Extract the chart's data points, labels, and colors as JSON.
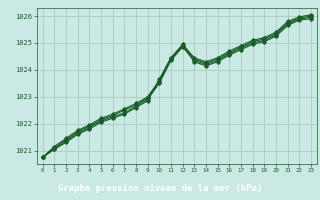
{
  "title": "Graphe pression niveau de la mer (hPa)",
  "bg_color": "#cbe9e4",
  "grid_color": "#aaccbb",
  "line_color": "#1a5c2a",
  "xlim": [
    -0.5,
    23.5
  ],
  "ylim": [
    1020.5,
    1026.3
  ],
  "yticks": [
    1021,
    1022,
    1023,
    1024,
    1025,
    1026
  ],
  "xticks": [
    0,
    1,
    2,
    3,
    4,
    5,
    6,
    7,
    8,
    9,
    10,
    11,
    12,
    13,
    14,
    15,
    16,
    17,
    18,
    19,
    20,
    21,
    22,
    23
  ],
  "series": [
    [
      1020.75,
      1021.05,
      1021.3,
      1021.6,
      1021.8,
      1022.05,
      1022.2,
      1022.35,
      1022.6,
      1022.85,
      1023.65,
      1024.45,
      1024.9,
      1024.3,
      1024.15,
      1024.3,
      1024.55,
      1024.75,
      1024.95,
      1025.05,
      1025.25,
      1025.65,
      1025.85,
      1025.9
    ],
    [
      1020.75,
      1021.05,
      1021.35,
      1021.65,
      1021.85,
      1022.1,
      1022.25,
      1022.4,
      1022.65,
      1022.9,
      1023.5,
      1024.35,
      1024.85,
      1024.35,
      1024.2,
      1024.35,
      1024.6,
      1024.8,
      1025.0,
      1025.1,
      1025.3,
      1025.7,
      1025.9,
      1025.95
    ],
    [
      1020.75,
      1021.1,
      1021.4,
      1021.7,
      1021.9,
      1022.15,
      1022.3,
      1022.5,
      1022.7,
      1022.95,
      1023.55,
      1024.4,
      1024.9,
      1024.4,
      1024.25,
      1024.4,
      1024.65,
      1024.85,
      1025.05,
      1025.15,
      1025.35,
      1025.75,
      1025.92,
      1026.0
    ],
    [
      1020.75,
      1021.15,
      1021.45,
      1021.75,
      1021.95,
      1022.2,
      1022.35,
      1022.55,
      1022.75,
      1023.0,
      1023.6,
      1024.45,
      1024.95,
      1024.45,
      1024.3,
      1024.45,
      1024.7,
      1024.9,
      1025.1,
      1025.2,
      1025.4,
      1025.8,
      1025.97,
      1026.05
    ]
  ]
}
